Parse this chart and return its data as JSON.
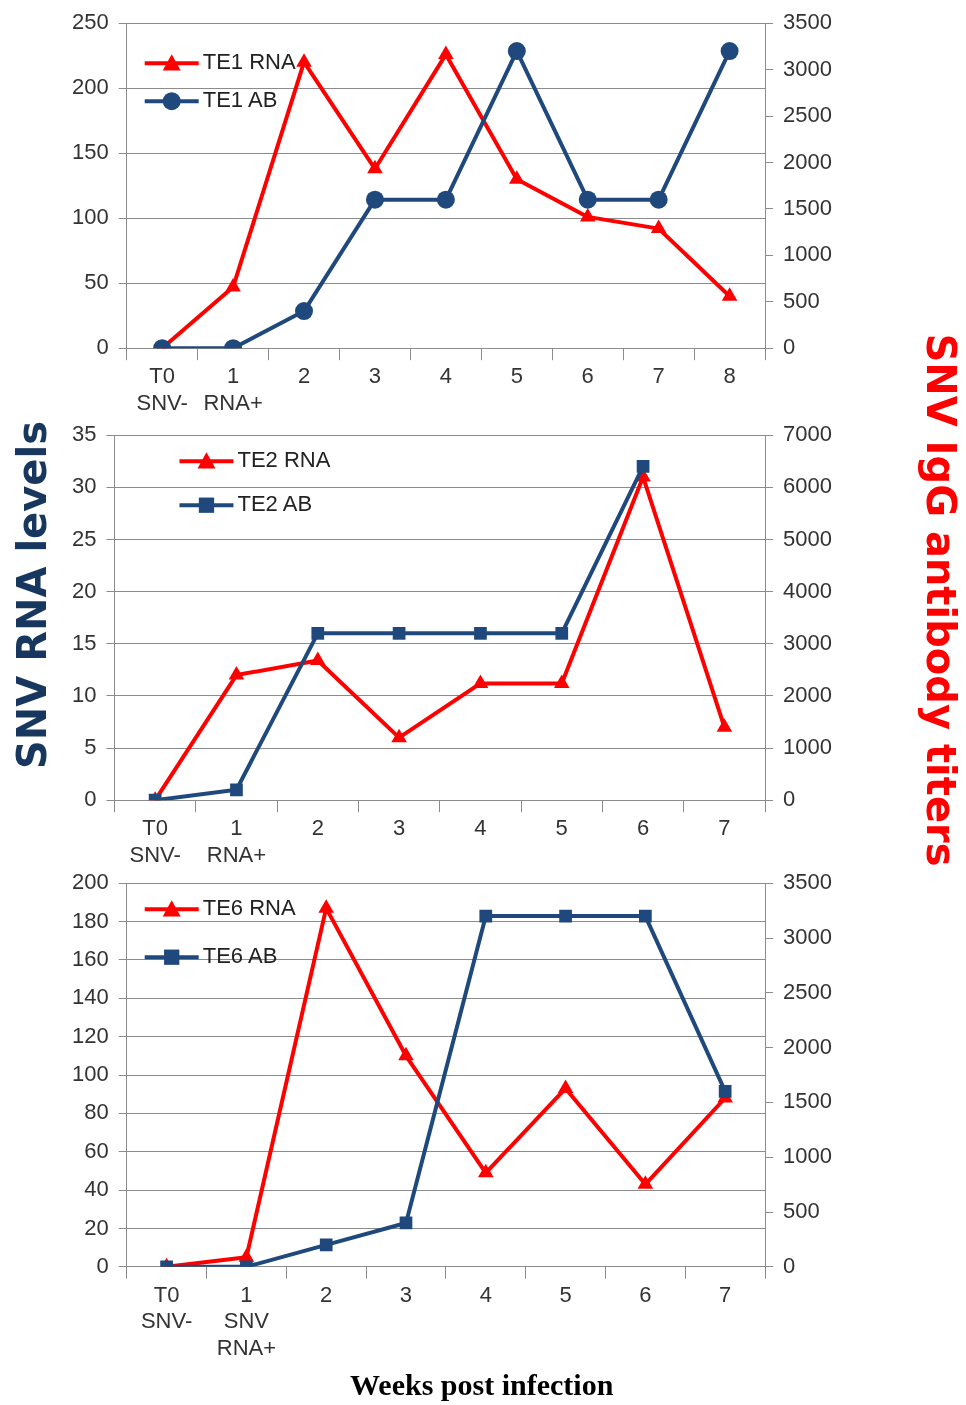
{
  "chart_data": [
    {
      "type": "line",
      "categories": [
        "T0\nSNV-",
        "1\nRNA+",
        "2",
        "3",
        "4",
        "5",
        "6",
        "7",
        "8"
      ],
      "series": [
        {
          "name": "TE1 RNA",
          "color": "#ff0000",
          "marker": "triangle",
          "values": [
            0,
            47,
            220,
            138,
            226,
            130,
            101,
            92,
            40
          ]
        },
        {
          "name": "TE1 AB",
          "color": "#1f497d",
          "marker": "circle",
          "axis": "y2",
          "values": [
            0,
            0,
            400,
            1600,
            1600,
            3200,
            1600,
            1600,
            3200
          ]
        }
      ],
      "ylim": [
        0,
        250
      ],
      "yticks": [
        0,
        50,
        100,
        150,
        200,
        250
      ],
      "y2lim": [
        0,
        3500
      ],
      "y2ticks": [
        0,
        500,
        1000,
        1500,
        2000,
        2500,
        3000,
        3500
      ],
      "grid": "y",
      "legend": "top left"
    },
    {
      "type": "line",
      "categories": [
        "T0\nSNV-",
        "1\nRNA+",
        "2",
        "3",
        "4",
        "5",
        "6",
        "7"
      ],
      "ylabel": "SNV RNA levels",
      "y2label": "SNV IgG antibody titers",
      "series": [
        {
          "name": "TE2 RNA",
          "color": "#ff0000",
          "marker": "triangle",
          "values": [
            0,
            12,
            13.4,
            6,
            11.2,
            11.2,
            31,
            7
          ]
        },
        {
          "name": "TE2 AB",
          "color": "#1f497d",
          "marker": "square",
          "axis": "y2",
          "values": [
            0,
            200,
            3200,
            3200,
            3200,
            3200,
            6400,
            null
          ]
        }
      ],
      "ylim": [
        0,
        35
      ],
      "yticks": [
        0,
        5,
        10,
        15,
        20,
        25,
        30,
        35
      ],
      "y2lim": [
        0,
        7000
      ],
      "y2ticks": [
        0,
        1000,
        2000,
        3000,
        4000,
        5000,
        6000,
        7000
      ],
      "grid": "y",
      "legend": "top left"
    },
    {
      "type": "line",
      "categories": [
        "T0\nSNV-",
        "1\nSNV\nRNA+",
        "2",
        "3",
        "4",
        "5",
        "6",
        "7"
      ],
      "xlabel": "Weeks post infection",
      "series": [
        {
          "name": "TE6 RNA",
          "color": "#ff0000",
          "marker": "triangle",
          "values": [
            0,
            5,
            187,
            110,
            49,
            93,
            43,
            88
          ]
        },
        {
          "name": "TE6 AB",
          "color": "#1f497d",
          "marker": "square",
          "axis": "y2",
          "values": [
            0,
            0,
            200,
            400,
            3200,
            3200,
            3200,
            1600
          ]
        }
      ],
      "ylim": [
        0,
        200
      ],
      "yticks": [
        0,
        20,
        40,
        60,
        80,
        100,
        120,
        140,
        160,
        180,
        200
      ],
      "y2lim": [
        0,
        3500
      ],
      "y2ticks": [
        0,
        500,
        1000,
        1500,
        2000,
        2500,
        3000,
        3500
      ],
      "grid": "y",
      "legend": "top left"
    }
  ]
}
